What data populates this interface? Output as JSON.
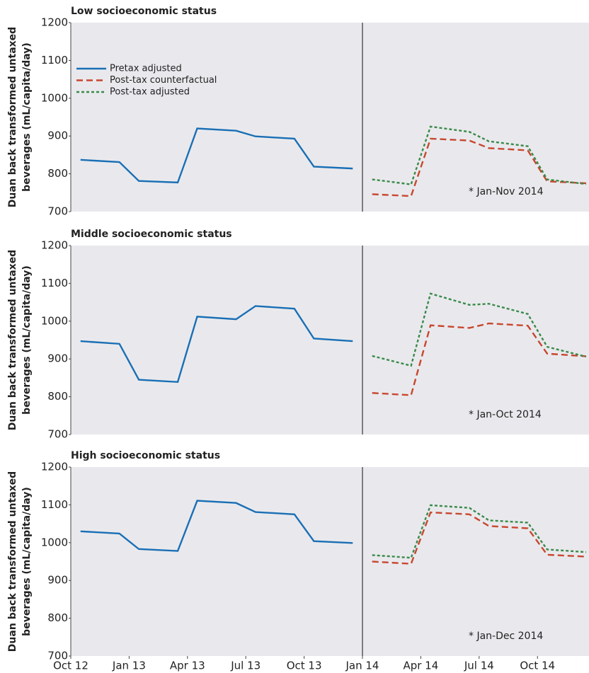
{
  "chart_data": [
    {
      "type": "line",
      "title": "Low socioeconomic status",
      "ylabel": [
        "Duan back transformed untaxed",
        "beverages (mL/capita/day)"
      ],
      "annotation": "* Jan-Nov 2014",
      "x": [
        0.5,
        2.5,
        3.5,
        5.5,
        6.5,
        8.5,
        9.5,
        11.5,
        12.5,
        14.5,
        15.5,
        17.5,
        18.5,
        20.5,
        21.5,
        23.5,
        24.5,
        26.5
      ],
      "xlim": [
        0,
        26.65
      ],
      "vline": 15,
      "ylim": [
        700,
        1200
      ],
      "yticks": [
        700,
        800,
        900,
        1000,
        1100,
        1200
      ],
      "legend": "upper left",
      "series": [
        {
          "name": "Pretax adjusted",
          "color": "#1a6fb5",
          "style": "solid",
          "values": [
            837,
            831,
            781,
            777,
            920,
            914,
            899,
            893,
            819,
            814,
            null,
            null,
            null,
            null,
            null,
            null,
            null,
            null
          ]
        },
        {
          "name": "Post-tax counterfactual",
          "color": "#c8472f",
          "style": "dashed",
          "values": [
            null,
            null,
            null,
            null,
            null,
            null,
            null,
            null,
            null,
            null,
            746,
            741,
            893,
            888,
            868,
            862,
            780,
            775
          ]
        },
        {
          "name": "Post-tax adjusted",
          "color": "#3a8a4a",
          "style": "dotted",
          "values": [
            null,
            null,
            null,
            null,
            null,
            null,
            null,
            null,
            null,
            null,
            785,
            772,
            925,
            911,
            886,
            873,
            785,
            773
          ]
        }
      ]
    },
    {
      "type": "line",
      "title": "Middle socioeconomic status",
      "ylabel": [
        "Duan back transformed untaxed",
        "beverages (mL/capita/day)"
      ],
      "annotation": "* Jan-Oct 2014",
      "x": [
        0.5,
        2.5,
        3.5,
        5.5,
        6.5,
        8.5,
        9.5,
        11.5,
        12.5,
        14.5,
        15.5,
        17.5,
        18.5,
        20.5,
        21.5,
        23.5,
        24.5,
        26.5
      ],
      "xlim": [
        0,
        26.65
      ],
      "vline": 15,
      "ylim": [
        700,
        1200
      ],
      "yticks": [
        700,
        800,
        900,
        1000,
        1100,
        1200
      ],
      "series": [
        {
          "color": "#1a6fb5",
          "style": "solid",
          "values": [
            947,
            940,
            845,
            839,
            1012,
            1005,
            1040,
            1033,
            954,
            947,
            null,
            null,
            null,
            null,
            null,
            null,
            null,
            null
          ]
        },
        {
          "color": "#c8472f",
          "style": "dashed",
          "values": [
            null,
            null,
            null,
            null,
            null,
            null,
            null,
            null,
            null,
            null,
            810,
            804,
            989,
            982,
            994,
            988,
            914,
            907
          ]
        },
        {
          "color": "#3a8a4a",
          "style": "dotted",
          "values": [
            null,
            null,
            null,
            null,
            null,
            null,
            null,
            null,
            null,
            null,
            908,
            882,
            1073,
            1043,
            1046,
            1019,
            932,
            906
          ]
        }
      ]
    },
    {
      "type": "line",
      "title": "High socioeconomic status",
      "ylabel": [
        "Duan back transformed untaxed",
        "beverages (mL/capita/day)"
      ],
      "annotation": "* Jan-Dec 2014",
      "x": [
        0.5,
        2.5,
        3.5,
        5.5,
        6.5,
        8.5,
        9.5,
        11.5,
        12.5,
        14.5,
        15.5,
        17.5,
        18.5,
        20.5,
        21.5,
        23.5,
        24.5,
        26.5
      ],
      "xlim": [
        0,
        26.65
      ],
      "vline": 15,
      "ylim": [
        700,
        1200
      ],
      "yticks": [
        700,
        800,
        900,
        1000,
        1100,
        1200
      ],
      "xticks": [
        {
          "value": 0,
          "label": "Oct 12"
        },
        {
          "value": 3,
          "label": "Jan 13"
        },
        {
          "value": 6,
          "label": "Apr 13"
        },
        {
          "value": 9,
          "label": "Jul 13"
        },
        {
          "value": 12,
          "label": "Oct 13"
        },
        {
          "value": 15,
          "label": "Jan 14"
        },
        {
          "value": 18,
          "label": "Apr 14"
        },
        {
          "value": 21,
          "label": "Jul 14"
        },
        {
          "value": 24,
          "label": "Oct 14"
        }
      ],
      "series": [
        {
          "color": "#1a6fb5",
          "style": "solid",
          "values": [
            1030,
            1024,
            983,
            978,
            1111,
            1105,
            1081,
            1075,
            1004,
            999,
            null,
            null,
            null,
            null,
            null,
            null,
            null,
            null
          ]
        },
        {
          "color": "#c8472f",
          "style": "dashed",
          "values": [
            null,
            null,
            null,
            null,
            null,
            null,
            null,
            null,
            null,
            null,
            950,
            944,
            1080,
            1075,
            1044,
            1038,
            968,
            963
          ]
        },
        {
          "color": "#3a8a4a",
          "style": "dotted",
          "values": [
            null,
            null,
            null,
            null,
            null,
            null,
            null,
            null,
            null,
            null,
            967,
            960,
            1099,
            1092,
            1059,
            1053,
            982,
            975
          ]
        }
      ]
    }
  ]
}
